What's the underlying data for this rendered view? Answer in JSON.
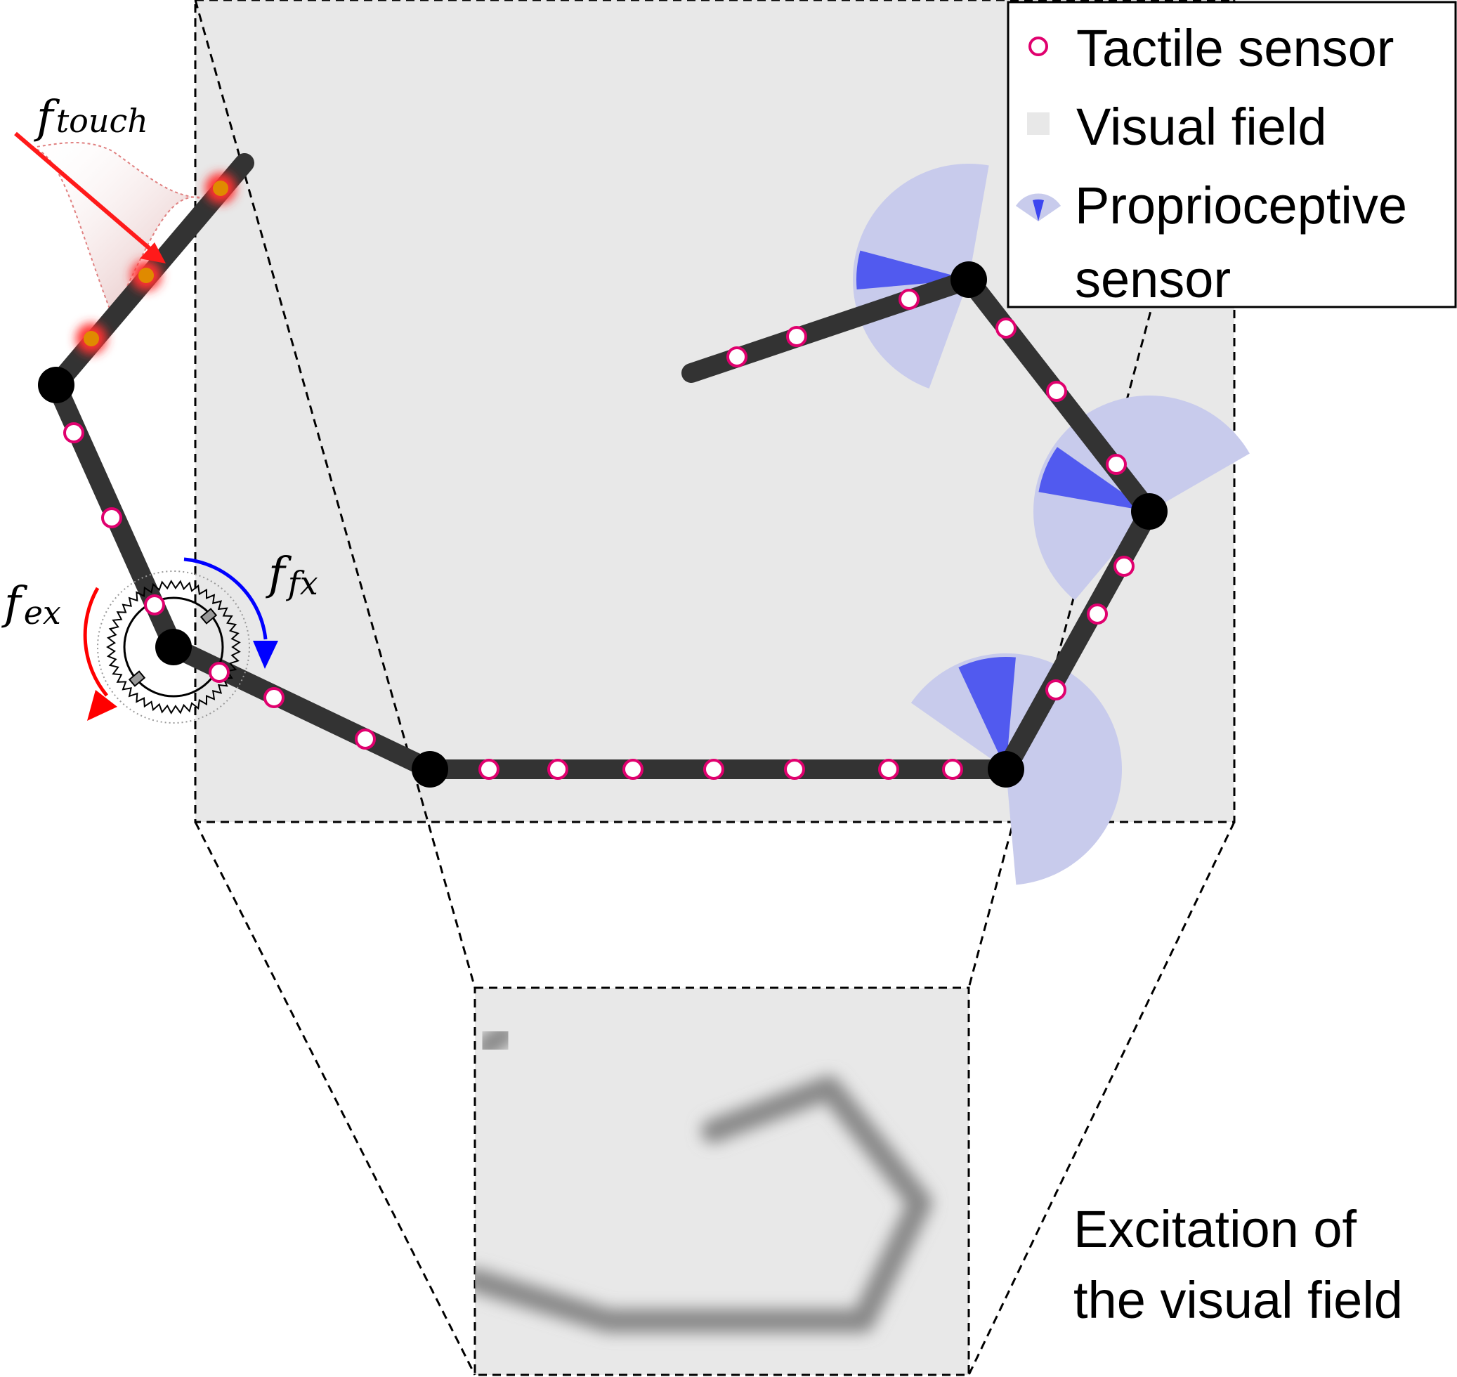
{
  "legend": {
    "tactile": "Tactile sensor",
    "visual": "Visual field",
    "proprio_line1": "Proprioceptive",
    "proprio_line2": "sensor"
  },
  "labels": {
    "f_touch": {
      "base": "f",
      "sub": "touch"
    },
    "f_ex": {
      "base": "f",
      "sub": "ex"
    },
    "f_fx": {
      "base": "f",
      "sub": "fx"
    }
  },
  "caption": {
    "line1": "Excitation of",
    "line2": "the visual field"
  },
  "colors": {
    "visual_field": "#e8e8e8",
    "arm": "#333333",
    "joint": "#000000",
    "tactile_stroke": "#e0006e",
    "tactile_fill": "#ffffff",
    "proprio_wedge": "#c8cbec",
    "proprio_core": "#3c46f0",
    "touch_force": "#ff1a1a",
    "touch_glow": "#ff3030",
    "touch_sensor": "#e08a00",
    "extensor_arrow": "#ff0000",
    "flexor_arrow": "#0000ff",
    "blur_trace": "#888888"
  },
  "icons": {
    "tactile": "hollow-circle-icon",
    "visual": "gray-square-icon",
    "proprio": "blue-wedge-icon",
    "muscle": "spring-muscle-icon"
  }
}
